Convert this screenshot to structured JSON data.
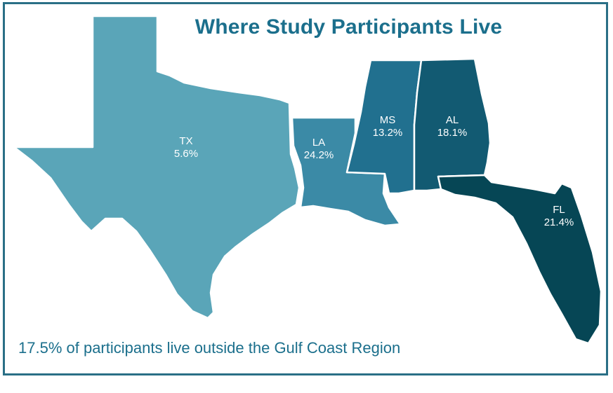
{
  "title": "Where Study Participants Live",
  "footnote": "17.5% of participants live outside the Gulf Coast Region",
  "states": [
    {
      "code": "TX",
      "value": "5.6%",
      "color": "#5aa5b8"
    },
    {
      "code": "LA",
      "value": "24.2%",
      "color": "#3b8aa6"
    },
    {
      "code": "MS",
      "value": "13.2%",
      "color": "#21708f"
    },
    {
      "code": "AL",
      "value": "18.1%",
      "color": "#125a72"
    },
    {
      "code": "FL",
      "value": "21.4%",
      "color": "#064655"
    }
  ]
}
